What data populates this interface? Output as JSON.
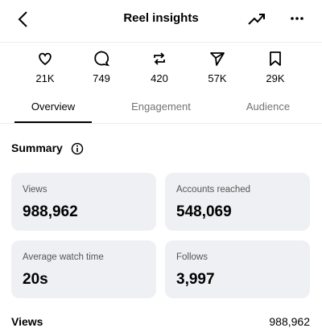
{
  "header": {
    "title": "Reel insights"
  },
  "stats": [
    "21K",
    "749",
    "420",
    "57K",
    "29K"
  ],
  "tabs": [
    "Overview",
    "Engagement",
    "Audience"
  ],
  "summary": {
    "title": "Summary",
    "cards": [
      {
        "label": "Views",
        "value": "988,962"
      },
      {
        "label": "Accounts reached",
        "value": "548,069"
      },
      {
        "label": "Average watch time",
        "value": "20s"
      },
      {
        "label": "Follows",
        "value": "3,997"
      }
    ]
  },
  "views_row": {
    "label": "Views",
    "value": "988,962"
  }
}
